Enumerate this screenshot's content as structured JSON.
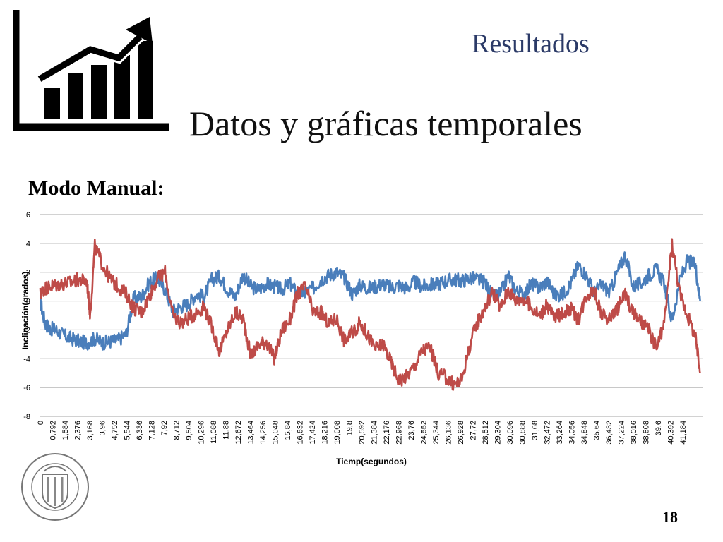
{
  "header": {
    "section_title": "Resultados",
    "main_title": "Datos y gráficas temporales",
    "icon": "growth-chart-icon"
  },
  "content": {
    "mode_label": "Modo Manual:"
  },
  "footer": {
    "seal": "university-seal-icon",
    "page_number": "18"
  },
  "chart_data": {
    "type": "line",
    "ylabel": "Inclinación(grados)",
    "xlabel": "Tiemp(segundos)",
    "ylim": [
      -8,
      6
    ],
    "yticks": [
      "6",
      "4",
      "2",
      "0",
      "-2",
      "-4",
      "-6",
      "-8"
    ],
    "ytick_values": [
      6,
      4,
      2,
      0,
      -2,
      -4,
      -6,
      -8
    ],
    "xlim": [
      0,
      42.5
    ],
    "xtick_labels": [
      "0",
      "0,792",
      "1,584",
      "2,376",
      "3,168",
      "3,96",
      "4,752",
      "5,544",
      "6,336",
      "7,128",
      "7,92",
      "8,712",
      "9,504",
      "10,296",
      "11,088",
      "11,88",
      "12,672",
      "13,464",
      "14,256",
      "15,048",
      "15,84",
      "16,632",
      "17,424",
      "18,216",
      "19,008",
      "19,8",
      "20,592",
      "21,384",
      "22,176",
      "22,968",
      "23,76",
      "24,552",
      "25,344",
      "26,136",
      "26,928",
      "27,72",
      "28,512",
      "29,304",
      "30,096",
      "30,888",
      "31,68",
      "32,472",
      "33,264",
      "34,056",
      "34,848",
      "35,64",
      "36,432",
      "37,224",
      "38,016",
      "38,808",
      "39,6",
      "40,392",
      "41,184"
    ],
    "xtick_values": [
      0,
      0.792,
      1.584,
      2.376,
      3.168,
      3.96,
      4.752,
      5.544,
      6.336,
      7.128,
      7.92,
      8.712,
      9.504,
      10.296,
      11.088,
      11.88,
      12.672,
      13.464,
      14.256,
      15.048,
      15.84,
      16.632,
      17.424,
      18.216,
      19.008,
      19.8,
      20.592,
      21.384,
      22.176,
      22.968,
      23.76,
      24.552,
      25.344,
      26.136,
      26.928,
      27.72,
      28.512,
      29.304,
      30.096,
      30.888,
      31.68,
      32.472,
      33.264,
      34.056,
      34.848,
      35.64,
      36.432,
      37.224,
      38.016,
      38.808,
      39.6,
      40.392,
      41.184
    ],
    "grid": true,
    "legend": "none",
    "series": [
      {
        "color": "#4a7ebb",
        "x": [
          0,
          0.3,
          0.6,
          1.0,
          1.5,
          2.0,
          2.5,
          3.0,
          3.5,
          4.0,
          4.5,
          5.0,
          5.5,
          6.0,
          6.5,
          7.0,
          7.5,
          8.0,
          8.5,
          9.0,
          9.5,
          10.0,
          10.5,
          11.0,
          11.5,
          12.0,
          12.5,
          13.0,
          13.5,
          14.0,
          14.5,
          15.0,
          15.5,
          16.0,
          16.5,
          17.0,
          17.5,
          18.0,
          18.5,
          19.0,
          19.5,
          20.0,
          20.5,
          21.0,
          21.5,
          22.0,
          22.5,
          23.0,
          23.5,
          24.0,
          24.5,
          25.0,
          25.5,
          26.0,
          26.5,
          27.0,
          27.5,
          28.0,
          28.5,
          29.0,
          29.5,
          30.0,
          30.5,
          31.0,
          31.5,
          32.0,
          32.5,
          33.0,
          33.5,
          34.0,
          34.5,
          35.0,
          35.5,
          36.0,
          36.5,
          37.0,
          37.5,
          38.0,
          38.5,
          39.0,
          39.5,
          40.0,
          40.5,
          41.0,
          41.5,
          42.0,
          42.3
        ],
        "y": [
          0,
          -1.5,
          -1.9,
          -2.0,
          -2.4,
          -2.6,
          -2.8,
          -2.9,
          -2.6,
          -2.9,
          -2.8,
          -2.7,
          -2.3,
          0.2,
          0.3,
          1.3,
          1.6,
          0.8,
          -0.7,
          -0.4,
          -0.2,
          0.5,
          0.3,
          1.5,
          1.7,
          0.8,
          0.3,
          1.8,
          1.0,
          0.8,
          1.2,
          1.0,
          0.8,
          1.2,
          0.5,
          0.6,
          0.9,
          1.5,
          1.8,
          2.0,
          1.6,
          0.5,
          1.1,
          0.9,
          1.0,
          1.2,
          0.9,
          1.1,
          0.9,
          1.3,
          1.0,
          1.1,
          1.2,
          1.4,
          1.5,
          1.4,
          1.6,
          1.5,
          1.3,
          0.3,
          0.5,
          1.8,
          0.7,
          0.5,
          1.2,
          0.9,
          1.4,
          0.4,
          0.5,
          1.2,
          2.5,
          1.8,
          0.6,
          1.1,
          0.6,
          2.0,
          3.2,
          1.0,
          1.2,
          1.8,
          2.2,
          1.2,
          -1.4,
          1.5,
          2.8,
          2.5,
          0.0
        ]
      },
      {
        "color": "#be4b48",
        "x": [
          0,
          0.3,
          0.6,
          1.0,
          1.5,
          2.0,
          2.5,
          3.0,
          3.2,
          3.5,
          4.0,
          4.5,
          5.0,
          5.5,
          6.0,
          6.5,
          7.0,
          7.5,
          8.0,
          8.5,
          9.0,
          9.5,
          10.0,
          10.5,
          11.0,
          11.5,
          12.0,
          12.5,
          13.0,
          13.5,
          14.0,
          14.5,
          15.0,
          15.5,
          16.0,
          16.5,
          17.0,
          17.5,
          18.0,
          18.5,
          19.0,
          19.5,
          20.0,
          20.5,
          21.0,
          21.5,
          22.0,
          22.5,
          23.0,
          23.5,
          24.0,
          24.5,
          25.0,
          25.5,
          26.0,
          26.5,
          27.0,
          27.5,
          28.0,
          28.5,
          29.0,
          29.5,
          30.0,
          30.5,
          31.0,
          31.5,
          32.0,
          32.5,
          33.0,
          33.5,
          34.0,
          34.5,
          35.0,
          35.5,
          36.0,
          36.5,
          37.0,
          37.5,
          38.0,
          38.5,
          39.0,
          39.5,
          40.0,
          40.5,
          41.0,
          41.5,
          42.0,
          42.3
        ],
        "y": [
          0.5,
          0.9,
          1.0,
          1.1,
          1.2,
          1.3,
          1.5,
          1.3,
          -1.0,
          3.8,
          2.5,
          1.5,
          1.0,
          0.5,
          -0.5,
          -0.8,
          0.4,
          1.5,
          2.0,
          -1.0,
          -1.5,
          -1.2,
          -0.8,
          -0.4,
          -1.8,
          -3.5,
          -2.0,
          -0.8,
          -1.2,
          -3.8,
          -3.0,
          -2.8,
          -4.0,
          -2.0,
          -1.3,
          0.5,
          1.0,
          -0.8,
          -0.8,
          -1.6,
          -1.2,
          -2.8,
          -2.2,
          -1.5,
          -2.4,
          -3.3,
          -3.0,
          -4.3,
          -5.5,
          -5.2,
          -4.5,
          -3.4,
          -3.2,
          -5.0,
          -5.3,
          -5.8,
          -5.5,
          -3.2,
          -1.5,
          -0.5,
          0.7,
          -0.5,
          0.8,
          0.0,
          0.2,
          -0.5,
          -1.0,
          -0.3,
          -1.2,
          -0.8,
          -0.5,
          -1.3,
          0.4,
          0.8,
          -1.0,
          -1.2,
          -0.5,
          0.5,
          -0.8,
          -1.5,
          -2.0,
          -3.3,
          -1.6,
          4.0,
          0.5,
          -1.0,
          -2.5,
          -5.0
        ]
      }
    ]
  }
}
